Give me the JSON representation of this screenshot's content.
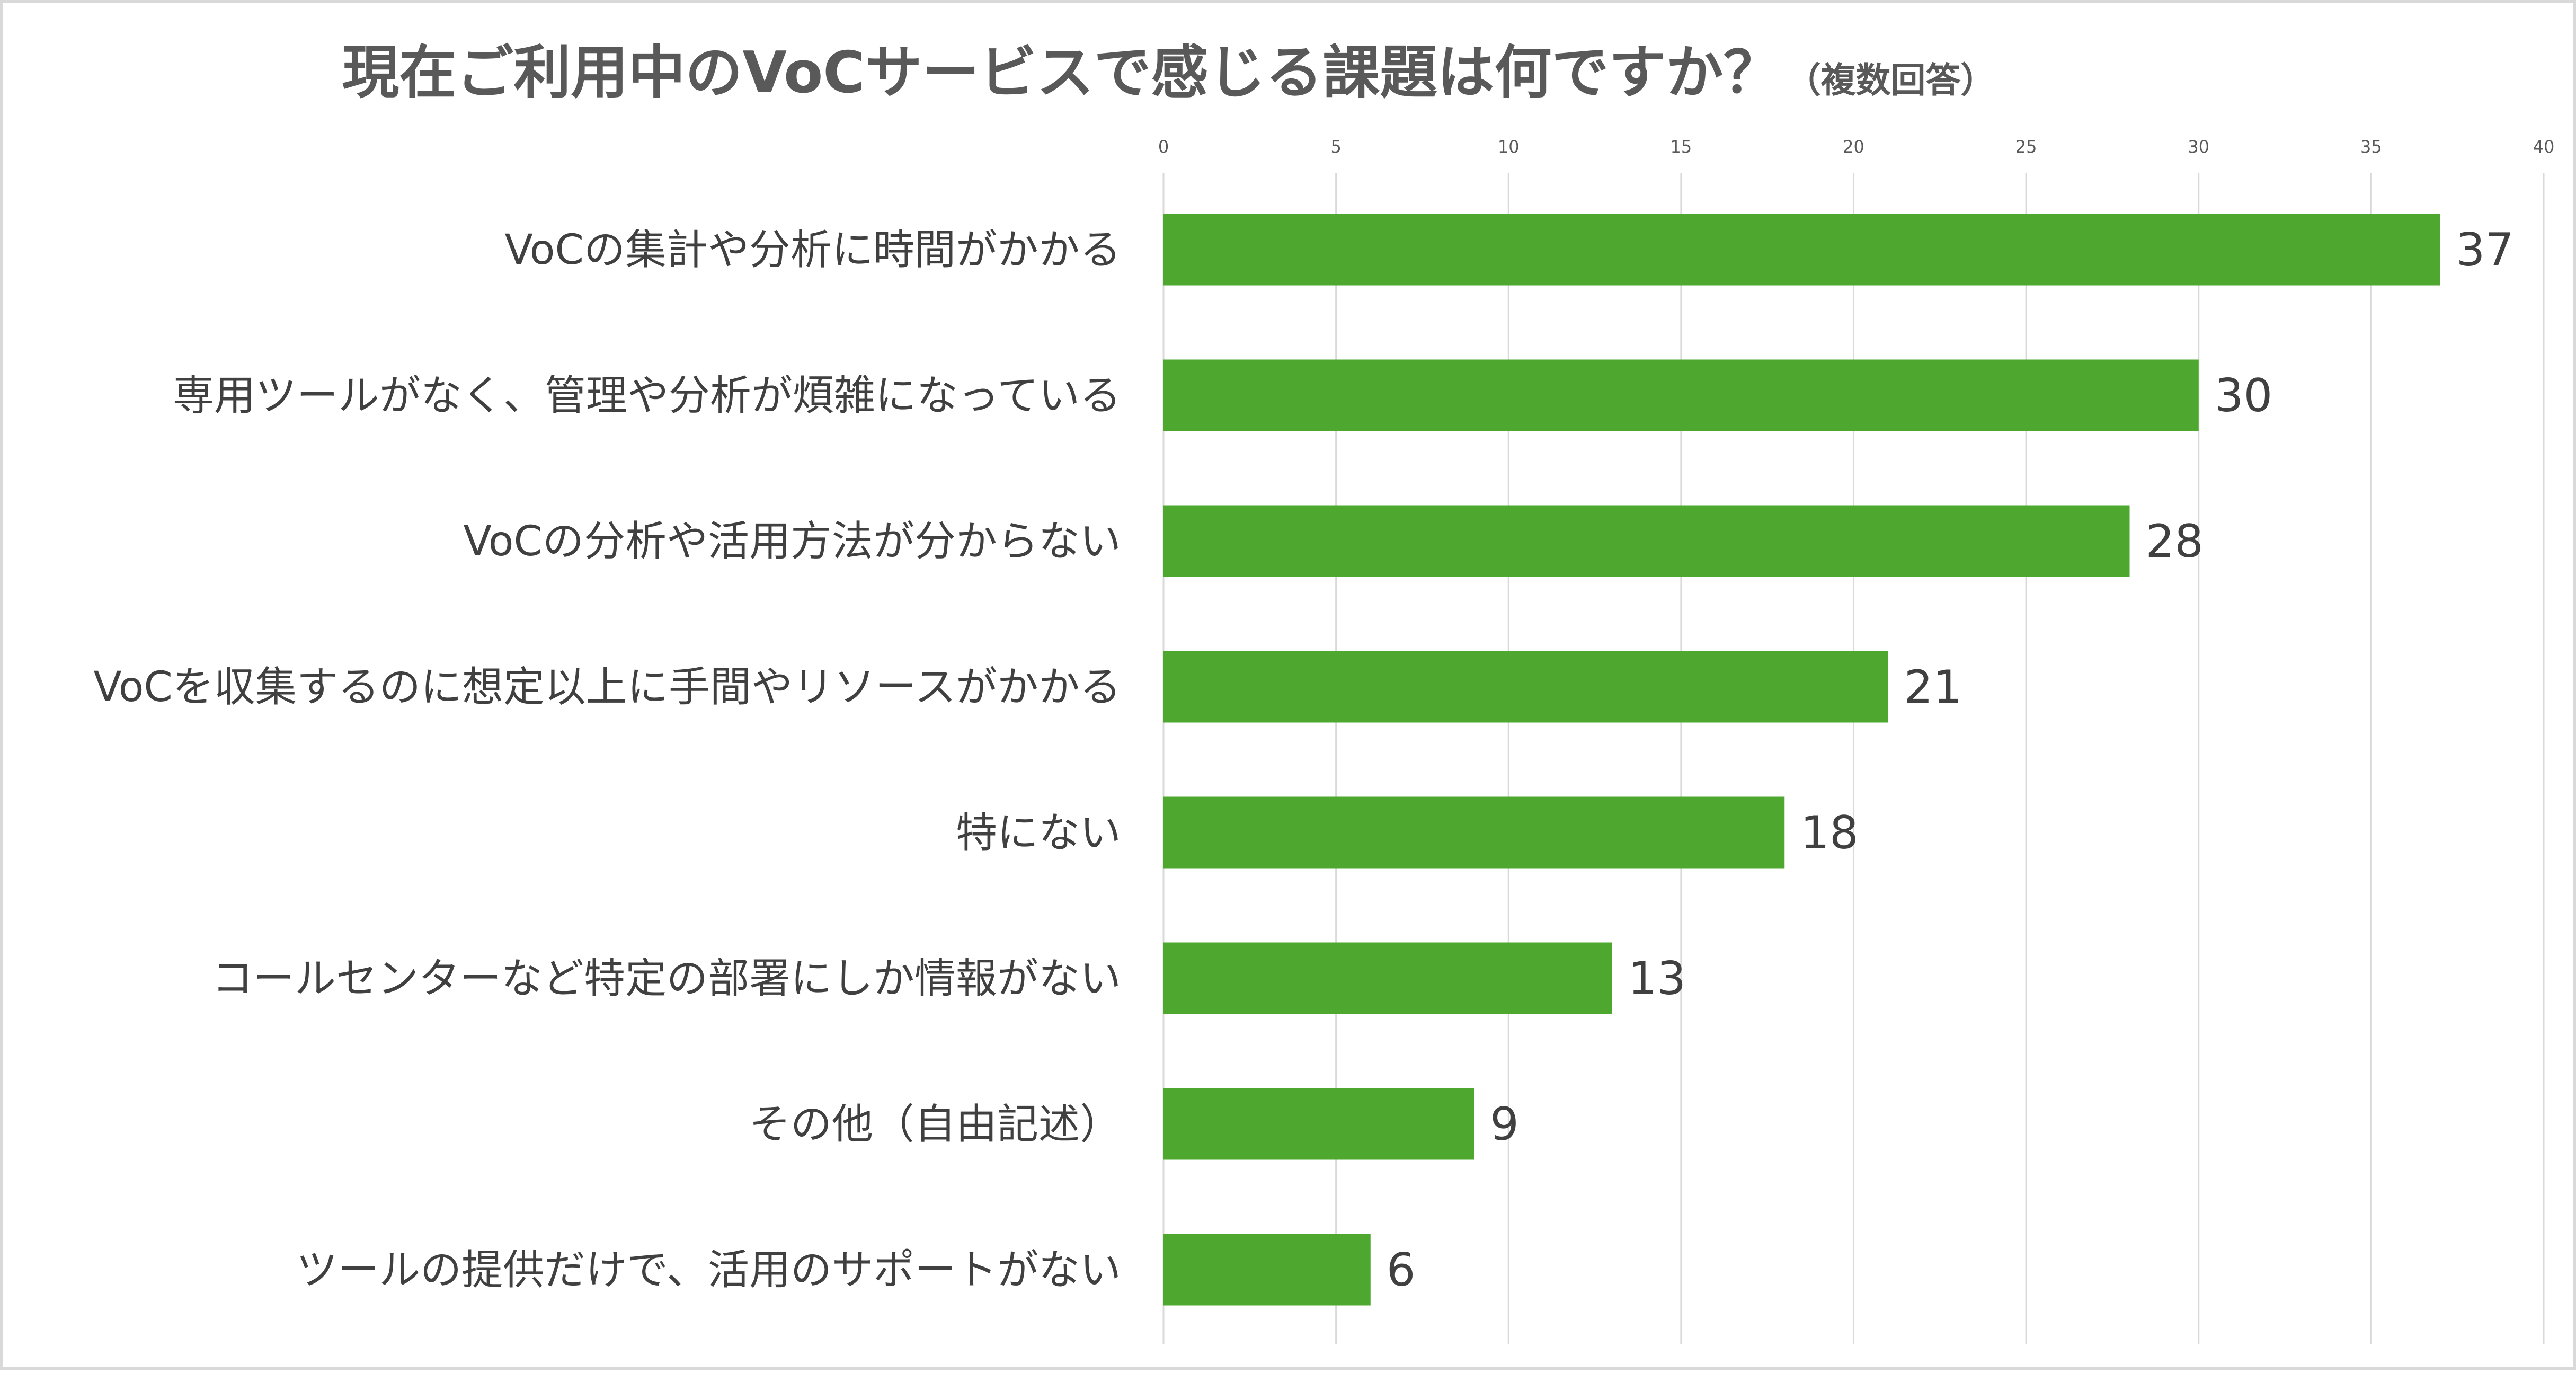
{
  "chart_data": {
    "type": "bar",
    "orientation": "horizontal",
    "title": "現在ご利用中のVoCサービスで感じる課題は何ですか？",
    "subtitle": "（複数回答）",
    "categories": [
      "VoCの集計や分析に時間がかかる",
      "専用ツールがなく、管理や分析が煩雑になっている",
      "VoCの分析や活用方法が分からない",
      "VoCを収集するのに想定以上に手間やリソースがかかる",
      "特にない",
      "コールセンターなど特定の部署にしか情報がない",
      "その他（自由記述）",
      "ツールの提供だけで、活用のサポートがない"
    ],
    "values": [
      37,
      30,
      28,
      21,
      18,
      13,
      9,
      6
    ],
    "xlim": [
      0,
      40
    ],
    "x_ticks": [
      0,
      5,
      10,
      15,
      20,
      25,
      30,
      35,
      40
    ],
    "x_axis_position": "top",
    "grid": true,
    "legend": "none",
    "bar_color": "#4ea72e"
  }
}
